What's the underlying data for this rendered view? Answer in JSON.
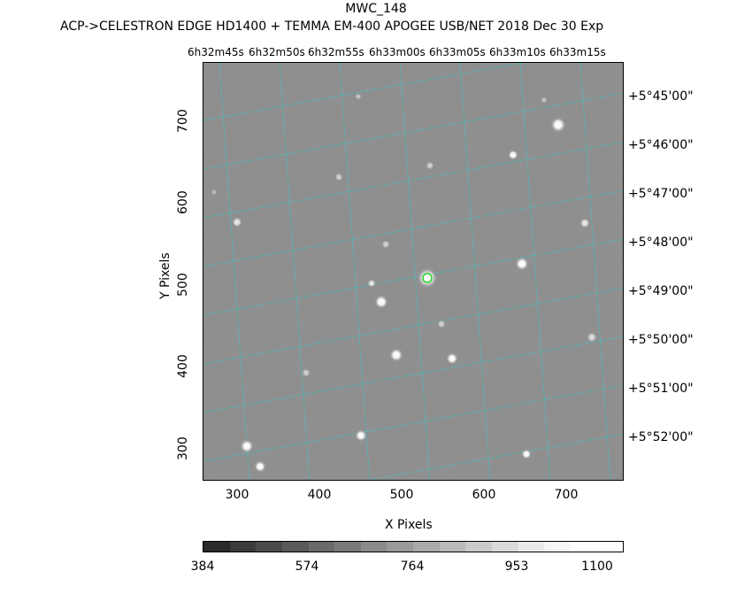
{
  "title": "MWC_148",
  "subtitle": "ACP->CELESTRON EDGE HD1400 + TEMMA EM-400 APOGEE USB/NET   2018 Dec 30    Exp",
  "ra_labels": [
    "6h32m45s",
    "6h32m50s",
    "6h32m55s",
    "6h33m00s",
    "6h33m05s",
    "6h33m10s",
    "6h33m15s"
  ],
  "dec_labels": [
    "+5°45'00\"",
    "+5°46'00\"",
    "+5°47'00\"",
    "+5°48'00\"",
    "+5°49'00\"",
    "+5°50'00\"",
    "+5°51'00\"",
    "+5°52'00\""
  ],
  "x_ticks": [
    "300",
    "400",
    "500",
    "600",
    "700"
  ],
  "y_ticks": [
    "700",
    "600",
    "500",
    "400",
    "300"
  ],
  "xlabel": "X Pixels",
  "ylabel": "Y Pixels",
  "colorbar_ticks": [
    "384",
    "574",
    "764",
    "953",
    "1100"
  ],
  "colors": {
    "grid": "#2ad0d0",
    "target_marker": "#00cc00",
    "background": "#8a8a8a"
  }
}
